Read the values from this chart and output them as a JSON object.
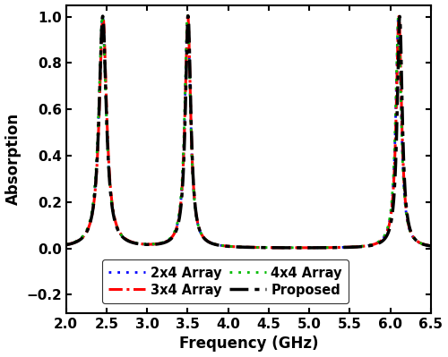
{
  "xlabel": "Frequency (GHz)",
  "ylabel": "Absorption",
  "xlim": [
    2.0,
    6.5
  ],
  "ylim": [
    -0.28,
    1.05
  ],
  "yticks": [
    -0.2,
    0.0,
    0.2,
    0.4,
    0.6,
    0.8,
    1.0
  ],
  "xticks": [
    2.0,
    2.5,
    3.0,
    3.5,
    4.0,
    4.5,
    5.0,
    5.5,
    6.0,
    6.5
  ],
  "series_params": {
    "2x4 Array": {
      "color": "#0000FF",
      "linestyle": "dotted",
      "linewidth": 2.0,
      "centers": [
        2.45,
        3.5,
        6.1
      ],
      "gammas": [
        0.055,
        0.042,
        0.04
      ],
      "amps": [
        1.0,
        1.0,
        1.0
      ]
    },
    "3x4 Array": {
      "color": "#FF0000",
      "linestyle": "dashdot_red",
      "linewidth": 2.2,
      "centers": [
        2.455,
        3.502,
        6.105
      ],
      "gammas": [
        0.055,
        0.042,
        0.04
      ],
      "amps": [
        1.0,
        1.0,
        1.0
      ]
    },
    "4x4 Array": {
      "color": "#00BB00",
      "linestyle": "dotted",
      "linewidth": 2.0,
      "centers": [
        2.448,
        3.498,
        6.098
      ],
      "gammas": [
        0.056,
        0.043,
        0.041
      ],
      "amps": [
        1.0,
        1.0,
        1.0
      ]
    },
    "Proposed": {
      "color": "#000000",
      "linestyle": "dashdot_black",
      "linewidth": 2.5,
      "centers": [
        2.452,
        3.505,
        6.115
      ],
      "gammas": [
        0.054,
        0.041,
        0.038
      ],
      "amps": [
        1.0,
        1.0,
        1.0
      ]
    }
  },
  "draw_order": [
    "2x4 Array",
    "3x4 Array",
    "4x4 Array",
    "Proposed"
  ],
  "legend_row1": [
    "2x4 Array",
    "3x4 Array"
  ],
  "legend_row2": [
    "4x4 Array",
    "Proposed"
  ],
  "background_color": "#ffffff"
}
